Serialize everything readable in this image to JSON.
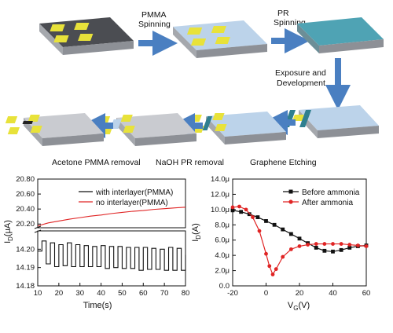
{
  "flow": {
    "labels": {
      "pmma_spinning": [
        "PMMA",
        "Spinning"
      ],
      "pr_spinning": [
        "PR",
        "Spinning"
      ],
      "exposure": [
        "Exposure and",
        "Development"
      ],
      "graphene_etching": "Graphene Etching",
      "naoh_removal": "NaOH PR removal",
      "acetone_removal": "Acetone PMMA removal"
    },
    "colors": {
      "substrate_top": "#c9cbd0",
      "substrate_side": "#8d9096",
      "graphene": "#4b4d52",
      "pad": "#e8e23a",
      "pmma": "#bcd3ea",
      "pr": "#4fa3b4",
      "arrow": "#4a7fc1"
    }
  },
  "chart_data": [
    {
      "type": "line",
      "xlabel": "Time(s)",
      "ylabel": "I_D(μA)",
      "xlim": [
        10,
        80
      ],
      "xticks": [
        "10",
        "20",
        "30",
        "40",
        "50",
        "60",
        "70",
        "80"
      ],
      "upper_panel": {
        "ylim": [
          20.15,
          20.8
        ],
        "yticks": [
          "20.20",
          "20.40",
          "20.60",
          "20.80"
        ]
      },
      "lower_panel": {
        "ylim": [
          14.18,
          14.21
        ],
        "yticks": [
          "14.18",
          "14.19",
          "14.20"
        ]
      },
      "legend": [
        "with interlayer(PMMA)",
        "no  interlayer(PMMA)"
      ],
      "legend_position": "top-right",
      "series": [
        {
          "name": "with interlayer(PMMA)",
          "color": "#111111",
          "panel": "lower",
          "x": [
            10,
            12,
            14,
            16,
            18,
            20,
            22,
            24,
            26,
            28,
            30,
            32,
            34,
            36,
            38,
            40,
            42,
            44,
            46,
            48,
            50,
            52,
            54,
            56,
            58,
            60,
            62,
            64,
            66,
            68,
            70,
            72,
            74,
            76,
            78,
            80
          ],
          "y": [
            14.199,
            14.2045,
            14.192,
            14.2035,
            14.1905,
            14.2025,
            14.191,
            14.2035,
            14.1905,
            14.2025,
            14.1905,
            14.202,
            14.1905,
            14.2015,
            14.1905,
            14.202,
            14.1895,
            14.2015,
            14.19,
            14.2015,
            14.1895,
            14.201,
            14.1895,
            14.201,
            14.1885,
            14.201,
            14.189,
            14.2005,
            14.189,
            14.2,
            14.1885,
            14.201,
            14.1885,
            14.2005,
            14.1885,
            14.197
          ]
        },
        {
          "name": "no  interlayer(PMMA)",
          "color": "#e02424",
          "panel": "upper",
          "x": [
            10,
            15,
            20,
            25,
            30,
            35,
            40,
            45,
            50,
            55,
            60,
            65,
            70,
            75,
            80
          ],
          "y": [
            20.175,
            20.215,
            20.24,
            20.265,
            20.285,
            20.305,
            20.32,
            20.34,
            20.355,
            20.37,
            20.38,
            20.395,
            20.405,
            20.415,
            20.425
          ]
        }
      ]
    },
    {
      "type": "line",
      "xlabel": "V_G(V)",
      "ylabel": "I_D(A)",
      "xlim": [
        -20,
        60
      ],
      "ylim": [
        0,
        14
      ],
      "xticks": [
        "-20",
        "0",
        "20",
        "40",
        "60"
      ],
      "yticks": [
        "0.0",
        "2.0μ",
        "4.0μ",
        "6.0μ",
        "8.0μ",
        "10.0μ",
        "12.0μ",
        "14.0μ"
      ],
      "legend": [
        "Before ammonia",
        "After ammonia"
      ],
      "legend_position": "top-right",
      "series": [
        {
          "name": "Before ammonia",
          "color": "#111111",
          "marker": "square",
          "x": [
            -20,
            -15,
            -10,
            -5,
            0,
            5,
            10,
            15,
            20,
            25,
            30,
            35,
            40,
            45,
            50,
            55,
            60
          ],
          "y": [
            9.9,
            9.7,
            9.4,
            9.0,
            8.5,
            8.0,
            7.4,
            6.8,
            6.2,
            5.6,
            5.0,
            4.6,
            4.5,
            4.7,
            5.0,
            5.2,
            5.3
          ]
        },
        {
          "name": "After ammonia",
          "color": "#e02424",
          "marker": "circle",
          "x": [
            -20,
            -16,
            -12,
            -8,
            -4,
            0,
            2,
            4,
            6,
            10,
            15,
            20,
            25,
            30,
            35,
            40,
            45,
            50,
            55,
            60
          ],
          "y": [
            10.3,
            10.4,
            10.0,
            9.0,
            7.2,
            4.2,
            2.6,
            1.5,
            2.2,
            3.8,
            4.8,
            5.2,
            5.4,
            5.5,
            5.5,
            5.5,
            5.5,
            5.4,
            5.3,
            5.2
          ]
        }
      ]
    }
  ]
}
